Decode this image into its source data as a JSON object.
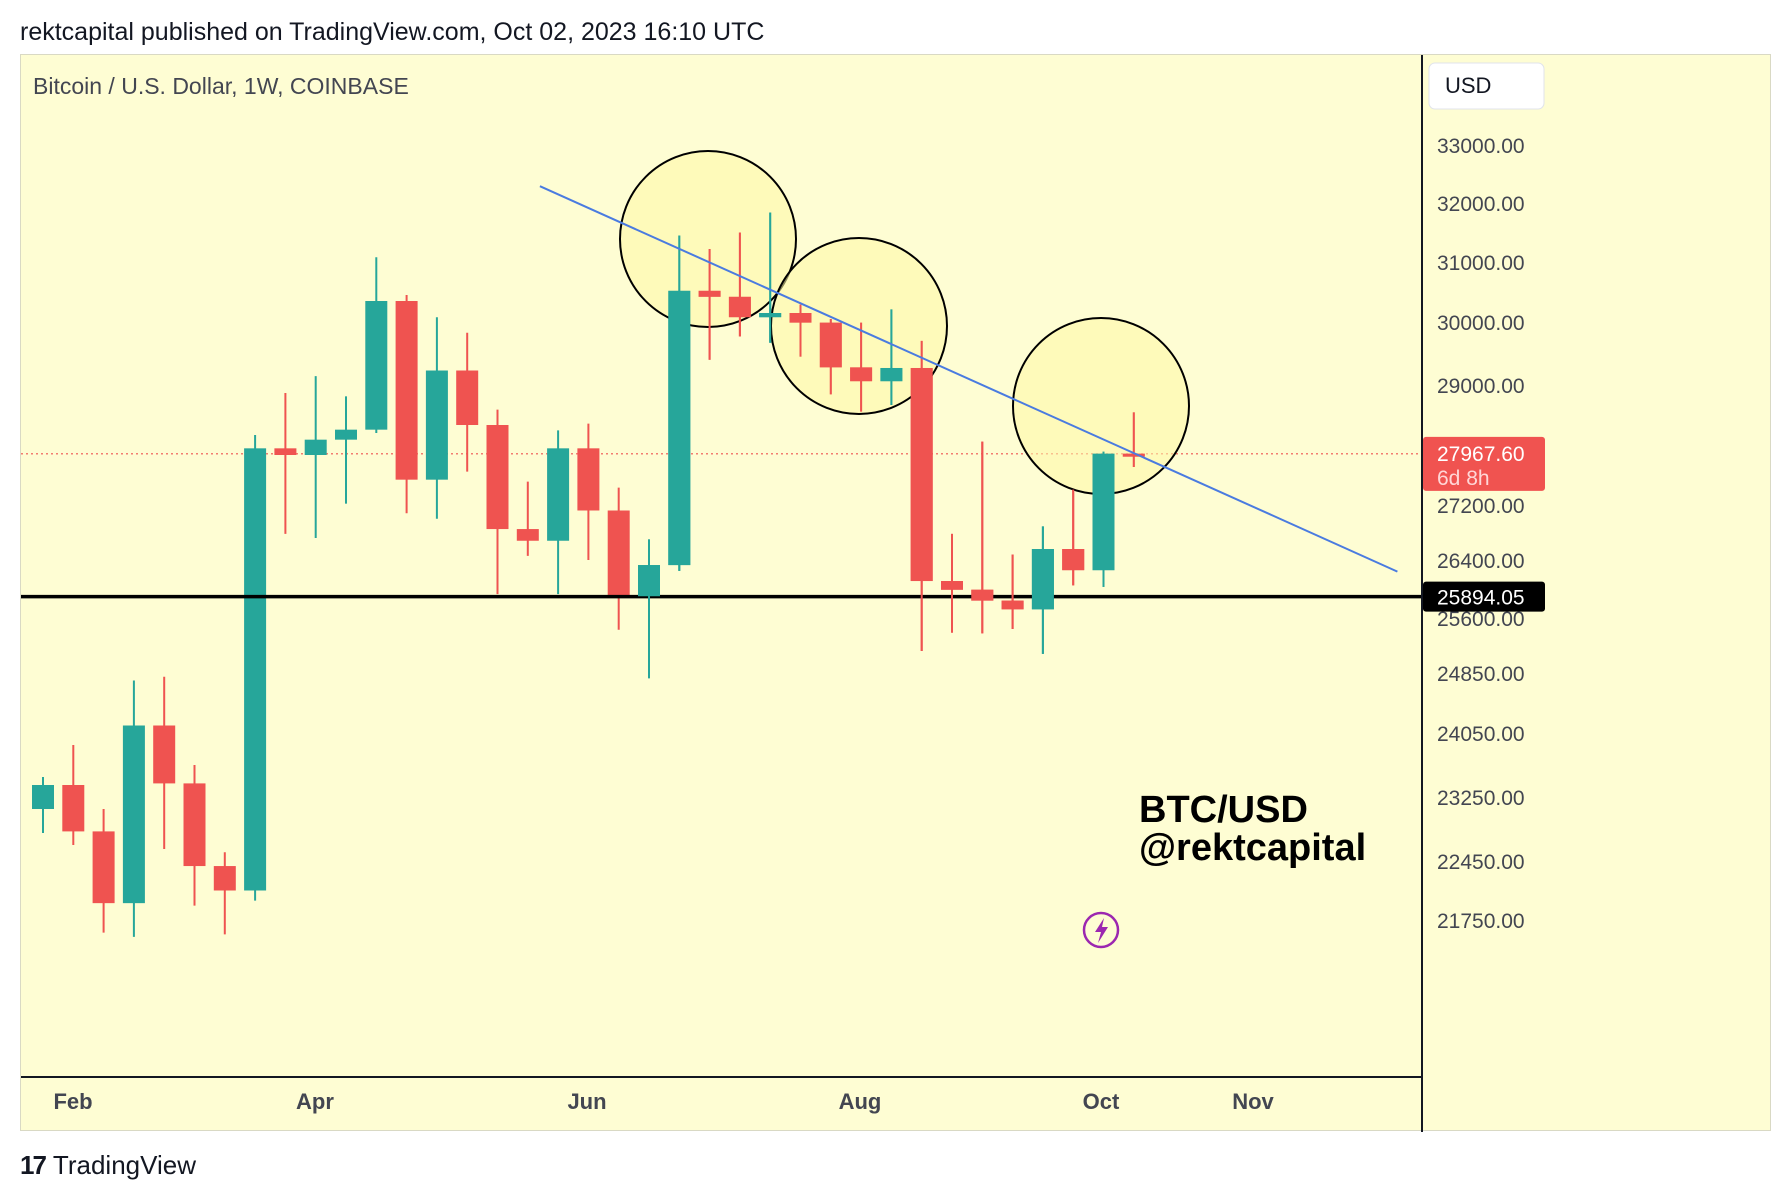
{
  "header": {
    "published": "rektcapital published on TradingView.com, Oct 02, 2023 16:10 UTC"
  },
  "legend": {
    "symbol": "Bitcoin / U.S. Dollar, 1W, COINBASE"
  },
  "currency_button": "USD",
  "watermark": {
    "line1": "BTC/USD",
    "line2": "@rektcapital"
  },
  "footer": {
    "brand": "TradingView",
    "logo_mark": "17"
  },
  "colors": {
    "background": "#fefdd3",
    "up": "#26a69a",
    "down": "#ef5350",
    "trendline": "#4a7be0",
    "support_line": "#000000",
    "price_label": "#f05350",
    "circle_fill": "#fdf7a6",
    "lightning": "#9c27b0"
  },
  "chart_data": {
    "type": "candlestick",
    "timeframe": "1W",
    "y_ticks": [
      33000,
      32000,
      31000,
      30000,
      29000,
      27200,
      26400,
      25600,
      24850,
      24050,
      23250,
      22450,
      21750
    ],
    "y_tick_labels": [
      "33000.00",
      "32000.00",
      "31000.00",
      "30000.00",
      "29000.00",
      "27200.00",
      "26400.00",
      "25600.00",
      "24850.00",
      "24050.00",
      "23250.00",
      "22450.00",
      "21750.00"
    ],
    "x_labels": [
      "Feb",
      "Apr",
      "Jun",
      "Aug",
      "Oct",
      "Nov"
    ],
    "current_price": {
      "value": 27967.6,
      "label": "27967.60",
      "countdown": "6d 8h"
    },
    "support_level": {
      "value": 25894.05,
      "label": "25894.05"
    },
    "candles": [
      {
        "o": 23100,
        "h": 23500,
        "l": 22800,
        "c": 23400
      },
      {
        "o": 23400,
        "h": 23900,
        "l": 22650,
        "c": 22820
      },
      {
        "o": 22820,
        "h": 23100,
        "l": 21600,
        "c": 21950
      },
      {
        "o": 21950,
        "h": 24750,
        "l": 21550,
        "c": 24150
      },
      {
        "o": 24150,
        "h": 24800,
        "l": 22600,
        "c": 23420
      },
      {
        "o": 23420,
        "h": 23650,
        "l": 21920,
        "c": 22390
      },
      {
        "o": 22390,
        "h": 22560,
        "l": 21580,
        "c": 22100
      },
      {
        "o": 22100,
        "h": 28250,
        "l": 21980,
        "c": 28050
      },
      {
        "o": 28050,
        "h": 28880,
        "l": 26780,
        "c": 27950
      },
      {
        "o": 27950,
        "h": 29140,
        "l": 26720,
        "c": 28180
      },
      {
        "o": 28180,
        "h": 28830,
        "l": 27220,
        "c": 28330
      },
      {
        "o": 28330,
        "h": 31080,
        "l": 28280,
        "c": 30350
      },
      {
        "o": 30350,
        "h": 30450,
        "l": 27080,
        "c": 27580
      },
      {
        "o": 27580,
        "h": 30080,
        "l": 27000,
        "c": 29230
      },
      {
        "o": 29230,
        "h": 29830,
        "l": 27700,
        "c": 28400
      },
      {
        "o": 28400,
        "h": 28630,
        "l": 25930,
        "c": 26850
      },
      {
        "o": 26850,
        "h": 27550,
        "l": 26460,
        "c": 26680
      },
      {
        "o": 26680,
        "h": 28320,
        "l": 25930,
        "c": 28050
      },
      {
        "o": 28050,
        "h": 28420,
        "l": 26400,
        "c": 27120
      },
      {
        "o": 27120,
        "h": 27460,
        "l": 25440,
        "c": 25900
      },
      {
        "o": 25900,
        "h": 26700,
        "l": 24780,
        "c": 26330
      },
      {
        "o": 26330,
        "h": 31450,
        "l": 26250,
        "c": 30520
      },
      {
        "o": 30520,
        "h": 31220,
        "l": 29400,
        "c": 30420
      },
      {
        "o": 30420,
        "h": 31500,
        "l": 29770,
        "c": 30080
      },
      {
        "o": 30080,
        "h": 31840,
        "l": 29670,
        "c": 30150
      },
      {
        "o": 30150,
        "h": 30290,
        "l": 29450,
        "c": 29990
      },
      {
        "o": 29990,
        "h": 30050,
        "l": 28860,
        "c": 29280
      },
      {
        "o": 29280,
        "h": 29990,
        "l": 28600,
        "c": 29060
      },
      {
        "o": 29060,
        "h": 30210,
        "l": 28700,
        "c": 29270
      },
      {
        "o": 29270,
        "h": 29700,
        "l": 25150,
        "c": 26110
      },
      {
        "o": 26110,
        "h": 26780,
        "l": 25400,
        "c": 25990
      },
      {
        "o": 25990,
        "h": 28150,
        "l": 25390,
        "c": 25840
      },
      {
        "o": 25840,
        "h": 26480,
        "l": 25450,
        "c": 25720
      },
      {
        "o": 25720,
        "h": 26890,
        "l": 25110,
        "c": 26560
      },
      {
        "o": 26560,
        "h": 27430,
        "l": 26050,
        "c": 26260
      },
      {
        "o": 26260,
        "h": 28000,
        "l": 26030,
        "c": 27970
      },
      {
        "o": 27970,
        "h": 28590,
        "l": 27770,
        "c": 27967.6
      }
    ],
    "trendline": {
      "from": {
        "candle": 16.4,
        "value": 32290
      },
      "to": {
        "candle": 44.7,
        "value": 26240
      }
    }
  }
}
